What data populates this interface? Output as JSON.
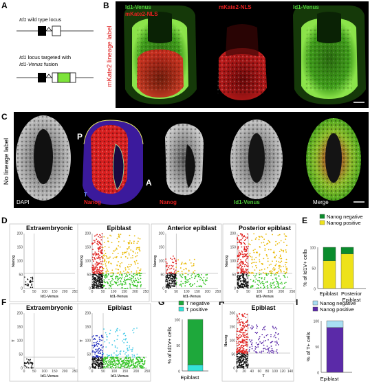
{
  "colors": {
    "red": "#e0211f",
    "green": "#37c427",
    "yellow": "#e9b800",
    "blue": "#1f2bbd",
    "cyan": "#3cc7e6",
    "purple": "#5b2aa8",
    "nanog_neg": "#0a8c2c",
    "nanog_pos": "#eee21a",
    "t_neg": "#1ea83b",
    "t_pos": "#33e3d8",
    "nanog_neg_I": "#a9def2",
    "nanog_pos_I": "#5b2aa8"
  },
  "panelA": {
    "letter": "A",
    "line1_italic": "Id1",
    "line1_rest": " wild type locus",
    "line2_italic": "Id1",
    "line2_rest": " locus targeted with",
    "line3_italic": "Id1-Venus",
    "line3_rest": " fusion"
  },
  "panelB": {
    "letter": "B",
    "side_label": "mKate2 lineage label",
    "p1_label1": "Id1-Venus",
    "p1_label2": "mKate2-NLS",
    "p2_label": "mKate2-NLS",
    "p3_label": "Id1-Venus"
  },
  "panelC": {
    "letter": "C",
    "side_label": "No lineage label",
    "p1_label": "DAPI",
    "p2_label": "Nanog",
    "p2_T": "T",
    "p2_P": "P",
    "p2_A": "A",
    "p3_label": "Nanog",
    "p4_label": "Id1-Venus",
    "p5_label": "Merge"
  },
  "panelD": {
    "letter": "D",
    "plots": [
      {
        "title": "Extraembryonic",
        "ylabel": "Nanog",
        "xlabel": "Id1-Venus"
      },
      {
        "title": "Epiblast",
        "ylabel": "Nanog",
        "xlabel": "Id1-Venus"
      },
      {
        "title": "Anterior epiblast",
        "ylabel": "Nanog",
        "xlabel": "Id1-Venus"
      },
      {
        "title": "Posterior epiblast",
        "ylabel": "Nanog",
        "xlabel": "Id1-Venus"
      }
    ],
    "xticks": [
      "0",
      "50",
      "100",
      "150",
      "200",
      "250"
    ],
    "yticks": [
      "0",
      "50",
      "100",
      "150",
      "200"
    ]
  },
  "panelE": {
    "letter": "E",
    "legend": [
      "Nanog negative",
      "Nanog positive"
    ],
    "ylabel": "% of Id1V+ cells",
    "yticks": [
      "0",
      "50",
      "100"
    ],
    "categories": [
      "Epiblast",
      "Posterior Epiblast"
    ],
    "cat2_line1": "Posterior",
    "cat2_line2": "Epiblast"
  },
  "panelF": {
    "letter": "F",
    "plots": [
      {
        "title": "Extraembryonic",
        "ylabel": "T",
        "xlabel": "Id1-Venus"
      },
      {
        "title": "Epiblast",
        "ylabel": "T",
        "xlabel": "Id1-Venus"
      }
    ],
    "xticks": [
      "0",
      "50",
      "100",
      "150",
      "200",
      "250"
    ],
    "yticks": [
      "0",
      "50",
      "100",
      "150",
      "200"
    ]
  },
  "panelG": {
    "letter": "G",
    "legend": [
      "T negative",
      "T positive"
    ],
    "ylabel": "% of Id1V+ cells",
    "yticks": [
      "0",
      "50",
      "100"
    ],
    "category": "Epiblast"
  },
  "panelH": {
    "letter": "H",
    "title": "Epiblast",
    "ylabel": "Nanog",
    "xlabel": "T",
    "xticks": [
      "0",
      "20",
      "40",
      "60",
      "80",
      "100",
      "120",
      "140"
    ],
    "yticks": [
      "0",
      "50",
      "100",
      "150",
      "200"
    ]
  },
  "panelI": {
    "letter": "I",
    "legend": [
      "Nanog negative",
      "Nanog positive"
    ],
    "ylabel": "% of T+ cells",
    "yticks": [
      "0",
      "50",
      "100"
    ],
    "category": "Epiblast"
  },
  "chart_data": [
    {
      "type": "bar",
      "panel": "E",
      "categories": [
        "Epiblast",
        "Posterior Epiblast"
      ],
      "series": [
        {
          "name": "Nanog negative",
          "values": [
            33,
            16
          ]
        },
        {
          "name": "Nanog positive",
          "values": [
            67,
            84
          ]
        }
      ],
      "ylabel": "% of Id1V+ cells",
      "ylim": [
        0,
        100
      ]
    },
    {
      "type": "bar",
      "panel": "G",
      "categories": [
        "Epiblast"
      ],
      "series": [
        {
          "name": "T negative",
          "values": [
            88
          ]
        },
        {
          "name": "T positive",
          "values": [
            12
          ]
        }
      ],
      "ylabel": "% of Id1V+ cells",
      "ylim": [
        0,
        100
      ]
    },
    {
      "type": "bar",
      "panel": "I",
      "categories": [
        "Epiblast"
      ],
      "series": [
        {
          "name": "Nanog negative",
          "values": [
            13
          ]
        },
        {
          "name": "Nanog positive",
          "values": [
            87
          ]
        }
      ],
      "ylabel": "% of T+ cells",
      "ylim": [
        0,
        100
      ]
    },
    {
      "type": "scatter",
      "panel": "D",
      "title": "Extraembryonic",
      "xlabel": "Id1-Venus",
      "ylabel": "Nanog",
      "xlim": [
        0,
        250
      ],
      "ylim": [
        0,
        200
      ],
      "gates": {
        "x": 50,
        "y": 55
      }
    },
    {
      "type": "scatter",
      "panel": "D",
      "title": "Epiblast",
      "xlabel": "Id1-Venus",
      "ylabel": "Nanog",
      "xlim": [
        0,
        250
      ],
      "ylim": [
        0,
        200
      ],
      "gates": {
        "x": 50,
        "y": 55
      }
    },
    {
      "type": "scatter",
      "panel": "D",
      "title": "Anterior epiblast",
      "xlabel": "Id1-Venus",
      "ylabel": "Nanog",
      "xlim": [
        0,
        250
      ],
      "ylim": [
        0,
        200
      ],
      "gates": {
        "x": 50,
        "y": 55
      }
    },
    {
      "type": "scatter",
      "panel": "D",
      "title": "Posterior epiblast",
      "xlabel": "Id1-Venus",
      "ylabel": "Nanog",
      "xlim": [
        0,
        250
      ],
      "ylim": [
        0,
        200
      ],
      "gates": {
        "x": 50,
        "y": 55
      }
    },
    {
      "type": "scatter",
      "panel": "F",
      "title": "Extraembryonic",
      "xlabel": "Id1-Venus",
      "ylabel": "T",
      "xlim": [
        0,
        250
      ],
      "ylim": [
        0,
        200
      ],
      "gates": {
        "x": 50,
        "y": 40
      }
    },
    {
      "type": "scatter",
      "panel": "F",
      "title": "Epiblast",
      "xlabel": "Id1-Venus",
      "ylabel": "T",
      "xlim": [
        0,
        250
      ],
      "ylim": [
        0,
        200
      ],
      "gates": {
        "x": 50,
        "y": 40
      }
    },
    {
      "type": "scatter",
      "panel": "H",
      "title": "Epiblast",
      "xlabel": "T",
      "ylabel": "Nanog",
      "xlim": [
        0,
        140
      ],
      "ylim": [
        0,
        200
      ],
      "gates": {
        "x": 30,
        "y": 55
      }
    }
  ]
}
